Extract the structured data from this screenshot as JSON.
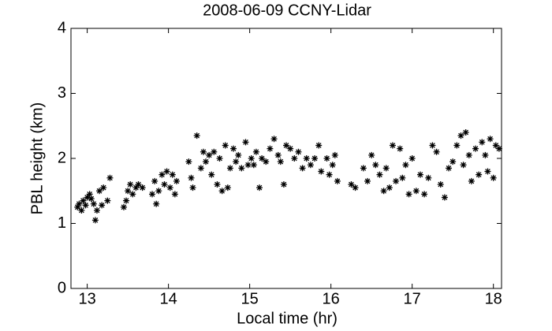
{
  "chart_data": {
    "type": "scatter",
    "title": "2008-06-09 CCNY-Lidar",
    "x_label": "Local time (hr)",
    "y_label": "PBL height (km)",
    "color": "#000000",
    "xlim": [
      12.8,
      18.1
    ],
    "ylim": [
      0,
      4
    ],
    "xticks": [
      13,
      14,
      15,
      16,
      17,
      18
    ],
    "yticks": [
      0,
      1,
      2,
      3,
      4
    ],
    "x": [
      12.88,
      12.9,
      12.93,
      12.95,
      12.98,
      13.0,
      13.03,
      13.05,
      13.08,
      13.1,
      13.12,
      13.15,
      13.18,
      13.2,
      13.25,
      13.28,
      13.45,
      13.48,
      13.5,
      13.53,
      13.56,
      13.6,
      13.63,
      13.68,
      13.8,
      13.83,
      13.85,
      13.88,
      13.92,
      13.95,
      13.98,
      14.02,
      14.05,
      14.08,
      14.1,
      14.25,
      14.28,
      14.3,
      14.35,
      14.4,
      14.43,
      14.46,
      14.5,
      14.53,
      14.56,
      14.6,
      14.63,
      14.66,
      14.7,
      14.73,
      14.76,
      14.8,
      14.83,
      14.86,
      14.9,
      14.95,
      14.98,
      15.02,
      15.05,
      15.08,
      15.12,
      15.15,
      15.2,
      15.25,
      15.3,
      15.35,
      15.38,
      15.42,
      15.45,
      15.5,
      15.55,
      15.6,
      15.65,
      15.7,
      15.75,
      15.8,
      15.85,
      15.88,
      15.95,
      15.98,
      16.02,
      16.05,
      16.08,
      16.25,
      16.3,
      16.4,
      16.45,
      16.5,
      16.55,
      16.6,
      16.65,
      16.68,
      16.72,
      16.76,
      16.8,
      16.85,
      16.88,
      16.92,
      16.96,
      17.0,
      17.05,
      17.1,
      17.15,
      17.2,
      17.25,
      17.3,
      17.35,
      17.4,
      17.45,
      17.5,
      17.55,
      17.6,
      17.63,
      17.66,
      17.7,
      17.73,
      17.78,
      17.82,
      17.86,
      17.9,
      17.93,
      17.96,
      18.0,
      18.03,
      18.07
    ],
    "y": [
      1.25,
      1.3,
      1.2,
      1.35,
      1.28,
      1.4,
      1.45,
      1.38,
      1.3,
      1.05,
      1.2,
      1.5,
      1.28,
      1.55,
      1.35,
      1.7,
      1.25,
      1.35,
      1.5,
      1.6,
      1.45,
      1.55,
      1.6,
      1.55,
      1.45,
      1.65,
      1.3,
      1.5,
      1.75,
      1.6,
      1.8,
      1.55,
      1.75,
      1.45,
      1.65,
      1.95,
      1.7,
      1.55,
      2.35,
      1.85,
      2.1,
      1.95,
      2.05,
      1.75,
      2.1,
      1.6,
      2.0,
      1.5,
      2.2,
      1.55,
      1.85,
      2.15,
      1.95,
      2.05,
      1.85,
      2.25,
      1.9,
      2.0,
      1.9,
      2.1,
      1.55,
      2.0,
      1.95,
      2.15,
      2.3,
      2.05,
      1.95,
      1.6,
      2.2,
      2.15,
      2.0,
      2.1,
      1.85,
      2.0,
      1.9,
      2.0,
      2.2,
      1.8,
      2.0,
      1.75,
      1.9,
      2.05,
      1.65,
      1.6,
      1.55,
      1.85,
      1.65,
      2.05,
      1.9,
      1.75,
      1.5,
      1.85,
      1.55,
      2.2,
      1.65,
      2.15,
      1.7,
      1.9,
      1.45,
      2.0,
      1.5,
      1.75,
      1.45,
      1.7,
      2.2,
      2.1,
      1.6,
      1.4,
      1.85,
      1.95,
      2.2,
      2.35,
      1.9,
      2.4,
      2.05,
      1.65,
      2.15,
      1.75,
      2.25,
      2.05,
      1.8,
      2.3,
      1.7,
      2.2,
      2.15
    ]
  }
}
